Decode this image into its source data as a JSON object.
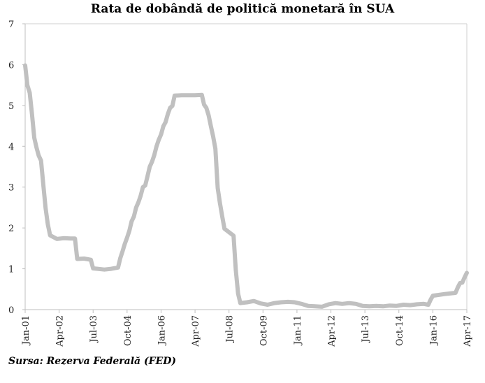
{
  "chart_data": {
    "type": "line",
    "title": "Rata de dobândă de politică monetară în SUA",
    "source": "Sursa: Rezerva Federală (FED)",
    "xlabel": "",
    "ylabel": "",
    "ylim": [
      0,
      7
    ],
    "y_ticks": [
      0,
      1,
      2,
      3,
      4,
      5,
      6,
      7
    ],
    "x_range": [
      "2001-01",
      "2017-04"
    ],
    "x_tick_labels": [
      "Jan-01",
      "Apr-02",
      "Jul-03",
      "Oct-04",
      "Jan-06",
      "Apr-07",
      "Jul-08",
      "Oct-09",
      "Jan-11",
      "Apr-12",
      "Jul-13",
      "Oct-14",
      "Jan-16",
      "Apr-17"
    ],
    "grid": false,
    "legend": "none",
    "line_color": "#c0c0c0",
    "series": [
      {
        "x": [
          "2001-01",
          "2001-02",
          "2001-03",
          "2001-04",
          "2001-05",
          "2001-06",
          "2001-07",
          "2001-08",
          "2001-09",
          "2001-10",
          "2001-11",
          "2001-12",
          "2002-03",
          "2002-06",
          "2002-09",
          "2002-11",
          "2002-12",
          "2003-03",
          "2003-06",
          "2003-07",
          "2003-09",
          "2003-12",
          "2004-03",
          "2004-06",
          "2004-07",
          "2004-08",
          "2004-09",
          "2004-10",
          "2004-11",
          "2004-12",
          "2005-01",
          "2005-02",
          "2005-03",
          "2005-04",
          "2005-05",
          "2005-06",
          "2005-07",
          "2005-08",
          "2005-09",
          "2005-10",
          "2005-11",
          "2005-12",
          "2006-01",
          "2006-02",
          "2006-03",
          "2006-04",
          "2006-05",
          "2006-06",
          "2006-07",
          "2006-10",
          "2007-01",
          "2007-04",
          "2007-07",
          "2007-08",
          "2007-09",
          "2007-10",
          "2007-11",
          "2007-12",
          "2008-01",
          "2008-02",
          "2008-03",
          "2008-04",
          "2008-05",
          "2008-09",
          "2008-10",
          "2008-11",
          "2008-12",
          "2009-03",
          "2009-06",
          "2009-09",
          "2009-12",
          "2010-03",
          "2010-06",
          "2010-09",
          "2010-12",
          "2011-03",
          "2011-06",
          "2011-09",
          "2011-12",
          "2012-03",
          "2012-06",
          "2012-09",
          "2012-12",
          "2013-03",
          "2013-06",
          "2013-09",
          "2013-12",
          "2014-03",
          "2014-06",
          "2014-09",
          "2014-12",
          "2015-03",
          "2015-06",
          "2015-09",
          "2015-11",
          "2015-12",
          "2016-01",
          "2016-06",
          "2016-11",
          "2016-12",
          "2017-01",
          "2017-02",
          "2017-03",
          "2017-04"
        ],
        "y": [
          5.98,
          5.49,
          5.31,
          4.8,
          4.21,
          3.97,
          3.77,
          3.65,
          3.07,
          2.49,
          2.09,
          1.82,
          1.73,
          1.75,
          1.74,
          1.74,
          1.24,
          1.25,
          1.22,
          1.01,
          1.0,
          0.98,
          1.0,
          1.03,
          1.26,
          1.43,
          1.61,
          1.76,
          1.93,
          2.16,
          2.28,
          2.5,
          2.63,
          2.79,
          3.0,
          3.04,
          3.26,
          3.5,
          3.62,
          3.78,
          4.0,
          4.16,
          4.29,
          4.49,
          4.59,
          4.79,
          4.94,
          4.99,
          5.24,
          5.25,
          5.25,
          5.25,
          5.26,
          5.02,
          4.94,
          4.76,
          4.49,
          4.24,
          3.94,
          2.98,
          2.61,
          2.28,
          1.98,
          1.81,
          0.97,
          0.39,
          0.16,
          0.18,
          0.21,
          0.15,
          0.12,
          0.16,
          0.18,
          0.19,
          0.18,
          0.14,
          0.09,
          0.08,
          0.07,
          0.13,
          0.16,
          0.14,
          0.16,
          0.14,
          0.09,
          0.08,
          0.09,
          0.08,
          0.1,
          0.09,
          0.12,
          0.11,
          0.13,
          0.14,
          0.12,
          0.24,
          0.34,
          0.38,
          0.41,
          0.54,
          0.65,
          0.66,
          0.79,
          0.9
        ]
      }
    ]
  }
}
